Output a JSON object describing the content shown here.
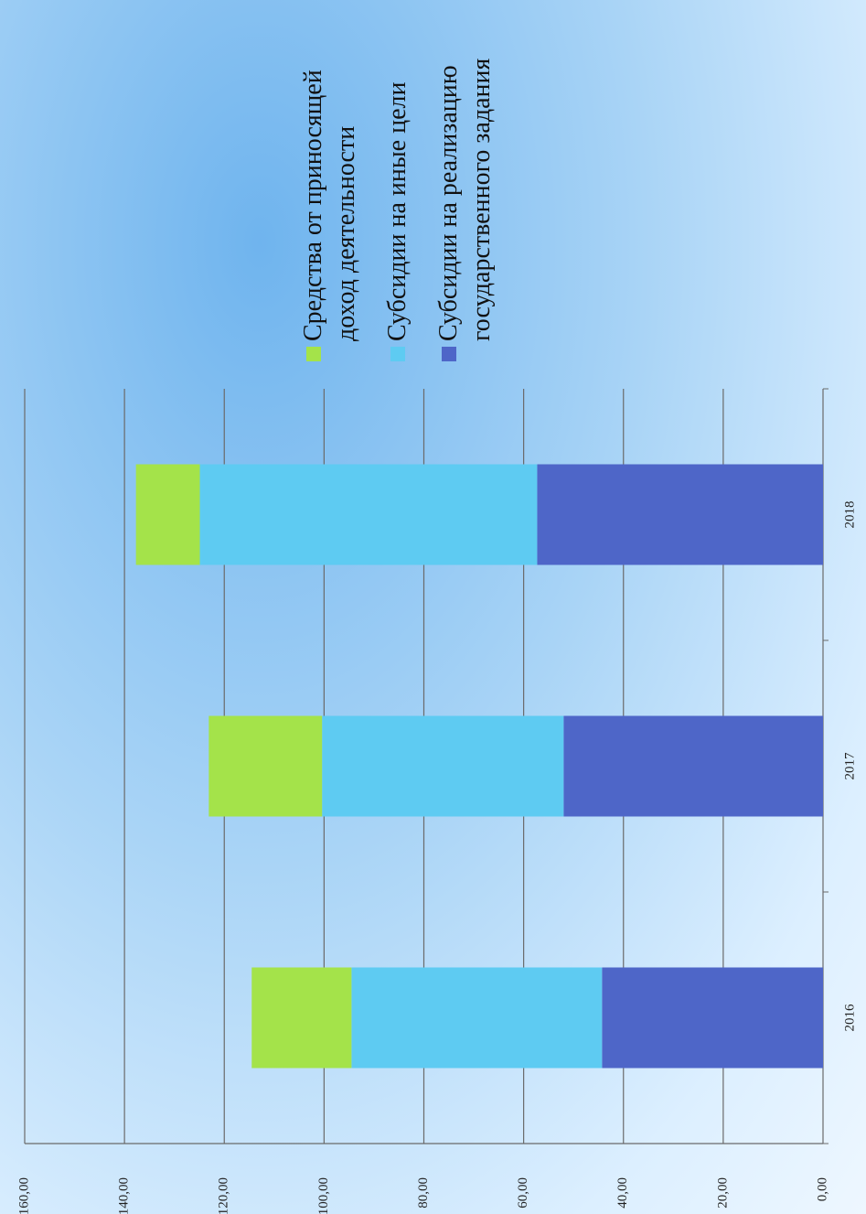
{
  "chart_data": {
    "type": "stacked_bar",
    "categories": [
      "2016",
      "2017",
      "2018"
    ],
    "series": [
      {
        "name": "Субсидии на реализацию государственного задания",
        "color": "#4e66c8",
        "values": [
          44.3,
          52.0,
          57.3
        ]
      },
      {
        "name": "Субсидии на иные цели",
        "color": "#5ecbf2",
        "values": [
          50.2,
          48.4,
          67.6
        ]
      },
      {
        "name": "Средства от приносящей доход деятельности",
        "color": "#a4e34a",
        "values": [
          20.0,
          22.7,
          12.8
        ]
      }
    ],
    "ylim": [
      0,
      160
    ],
    "yticks": [
      {
        "value": 0,
        "label": "0,00"
      },
      {
        "value": 20,
        "label": "20,00"
      },
      {
        "value": 40,
        "label": "40,00"
      },
      {
        "value": 60,
        "label": "60,00"
      },
      {
        "value": 80,
        "label": "80,00"
      },
      {
        "value": 100,
        "label": "100,00"
      },
      {
        "value": 120,
        "label": "120,00"
      },
      {
        "value": 140,
        "label": "140,00"
      },
      {
        "value": 160,
        "label": "160,00"
      }
    ],
    "grid": true,
    "legend": "right"
  }
}
